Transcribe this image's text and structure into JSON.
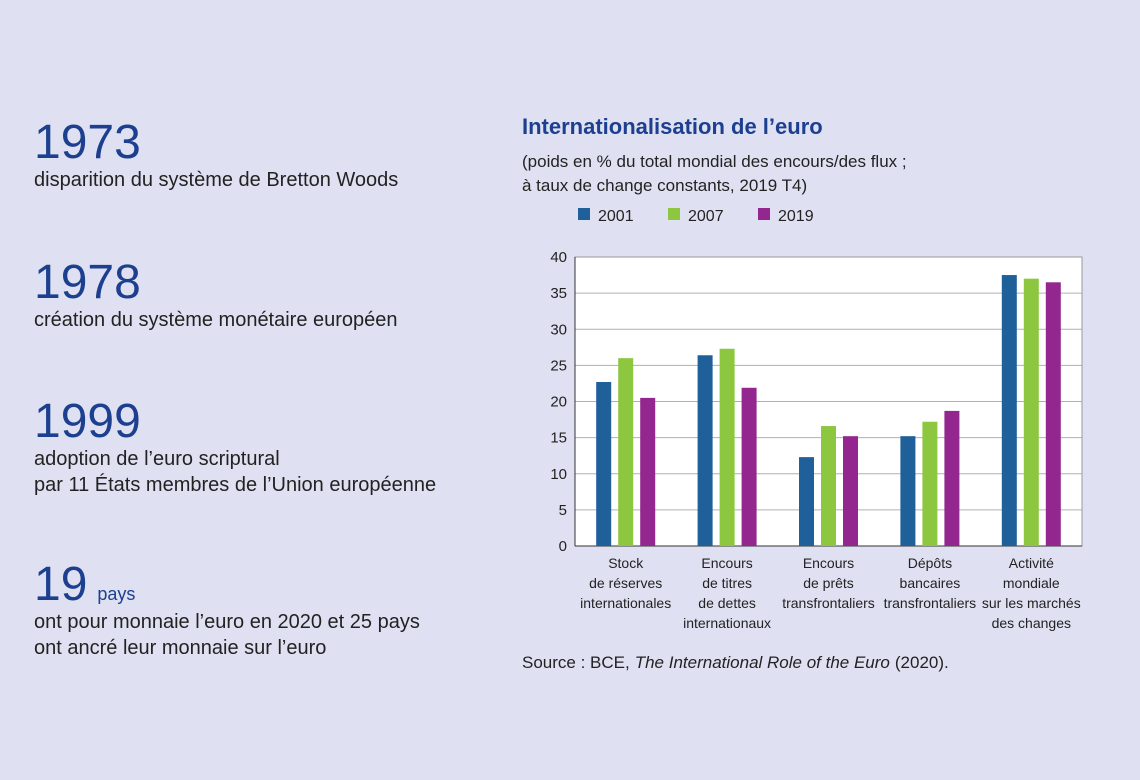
{
  "facts": [
    {
      "year": "1973",
      "lines": [
        "disparition du système de Bretton Woods"
      ]
    },
    {
      "year": "1978",
      "lines": [
        "création du système monétaire européen"
      ]
    },
    {
      "year": "1999",
      "lines": [
        "adoption de l’euro scriptural",
        "par 11 États membres de l’Union européenne"
      ]
    },
    {
      "year": "19",
      "unit": "pays",
      "lines": [
        "ont pour monnaie l’euro en 2020 et 25 pays",
        "ont ancré leur monnaie sur l’euro"
      ]
    }
  ],
  "chart_data": {
    "type": "bar",
    "title": "Internationalisation de l’euro",
    "subtitle": [
      "(poids en % du total mondial des encours/des flux ;",
      "à taux de change constants, 2019 T4)"
    ],
    "categories": [
      [
        "Stock",
        "de réserves",
        "internationales"
      ],
      [
        "Encours",
        "de titres",
        "de dettes",
        "internationaux"
      ],
      [
        "Encours",
        "de prêts",
        "transfrontaliers"
      ],
      [
        "Dépôts",
        "bancaires",
        "transfrontaliers"
      ],
      [
        "Activité",
        "mondiale",
        "sur les marchés",
        "des changes"
      ]
    ],
    "series": [
      {
        "name": "2001",
        "color": "#1f5f9a",
        "values": [
          22.7,
          26.4,
          12.3,
          15.2,
          37.5
        ]
      },
      {
        "name": "2007",
        "color": "#8dc63f",
        "values": [
          26.0,
          27.3,
          16.6,
          17.2,
          37.0
        ]
      },
      {
        "name": "2019",
        "color": "#93278f",
        "values": [
          20.5,
          21.9,
          15.2,
          18.7,
          36.5
        ]
      }
    ],
    "ylim": [
      0,
      40
    ],
    "yticks": [
      0,
      5,
      10,
      15,
      20,
      25,
      30,
      35,
      40
    ],
    "grid": true,
    "legend": "top",
    "source": [
      "Source : BCE,",
      "The International Role of the Euro",
      "(2020)."
    ]
  }
}
